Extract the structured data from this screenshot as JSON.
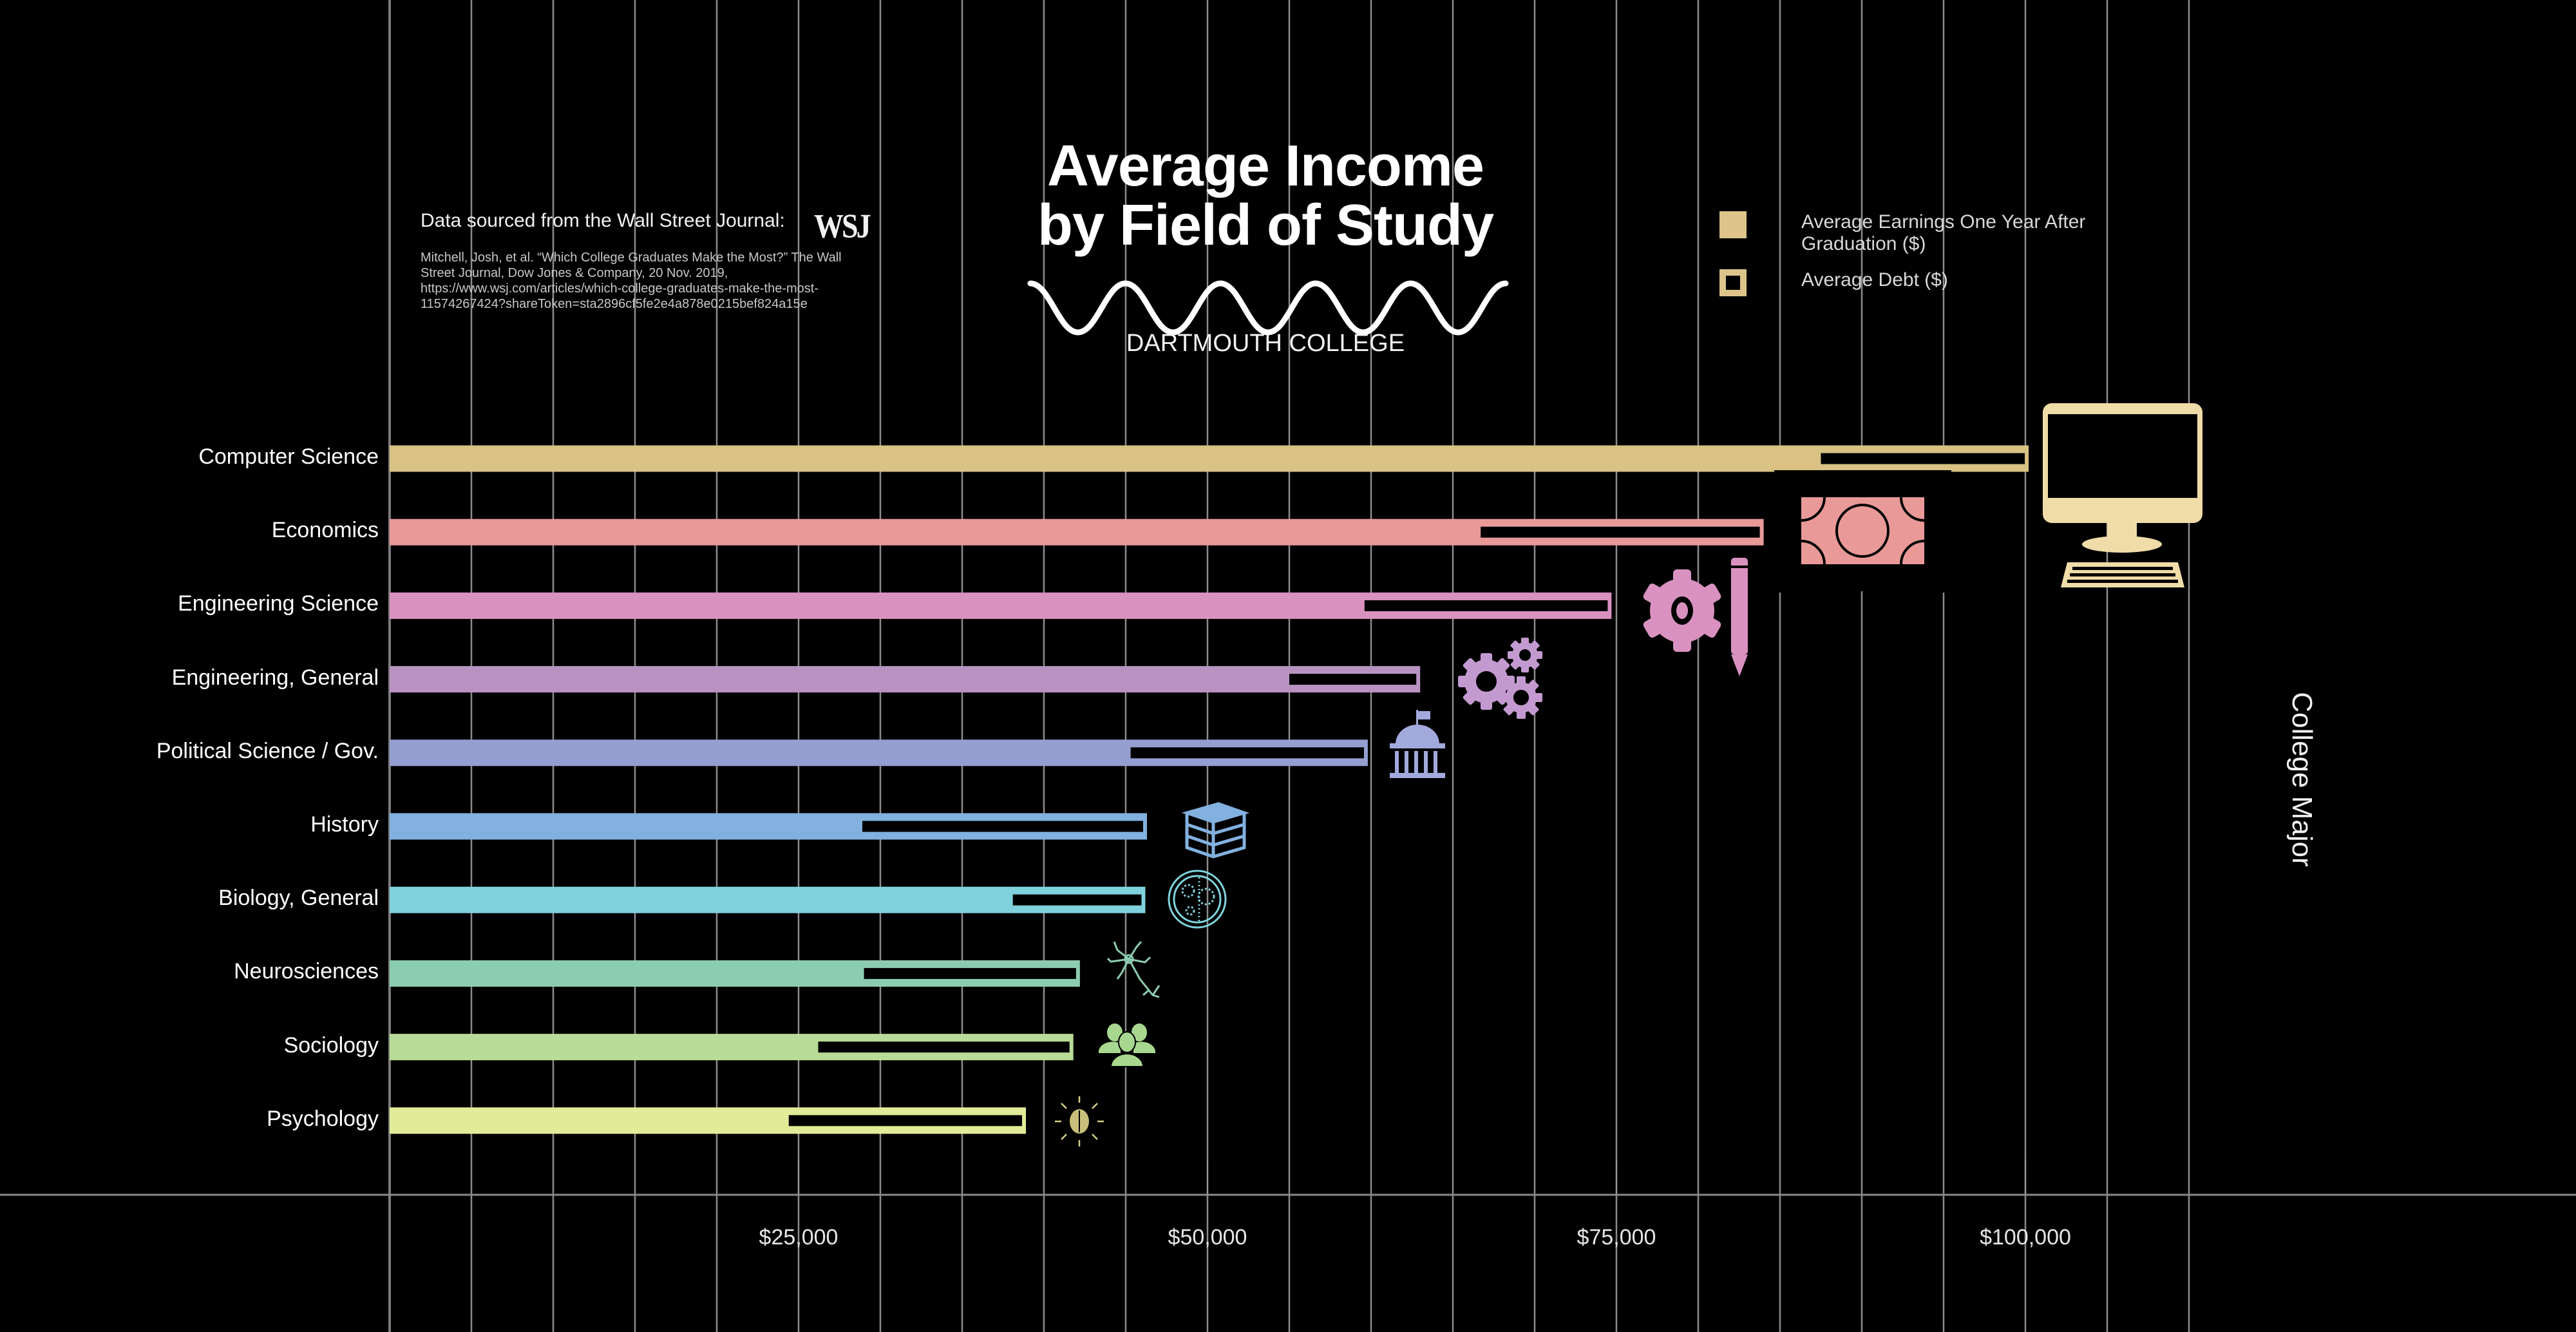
{
  "header": {
    "title_line1": "Average Income",
    "title_line2": "by Field of Study",
    "subtitle": "DARTMOUTH COLLEGE"
  },
  "source": {
    "heading": "Data sourced from the Wall Street Journal:",
    "logo_text": "WSJ",
    "citation": "Mitchell, Josh, et al. “Which College Graduates Make the Most?” The Wall Street Journal, Dow Jones & Company, 20 Nov. 2019, https://www.wsj.com/articles/which-college-graduates-make-the-most-11574267424?shareToken=sta2896cf5fe2e4a878e0215bef824a15e"
  },
  "legend": {
    "earnings_label": "Average Earnings One Year After Graduation ($)",
    "debt_label": "Average Debt ($)",
    "swatch_color": "#dcc48a"
  },
  "chart_data": {
    "type": "bar",
    "orientation": "horizontal",
    "title": "Average Income by Field of Study",
    "subtitle": "DARTMOUTH COLLEGE",
    "xlabel": "",
    "ylabel": "College Major",
    "xlim": [
      0,
      110000
    ],
    "x_ticks": [
      25000,
      50000,
      75000,
      100000
    ],
    "x_tick_labels": [
      "$25,000",
      "$50,000",
      "$75,000",
      "$100,000"
    ],
    "gridline_step": 5000,
    "grid": true,
    "legend_position": "top-right",
    "categories": [
      "Computer Science",
      "Economics",
      "Engineering Science",
      "Engineering, General",
      "Political Science / Gov.",
      "History",
      "Biology, General",
      "Neurosciences",
      "Sociology",
      "Psychology"
    ],
    "series": [
      {
        "name": "Average Earnings One Year After Graduation ($)",
        "values": [
          100200,
          84000,
          74700,
          63000,
          59800,
          46300,
          46200,
          42200,
          41800,
          38900
        ]
      },
      {
        "name": "Average Debt ($)",
        "values": [
          12700,
          17300,
          15100,
          8000,
          14500,
          17400,
          8100,
          13200,
          15600,
          14500
        ]
      }
    ],
    "colors": [
      "#d9c283",
      "#e99a98",
      "#d992c0",
      "#b893c2",
      "#959ed0",
      "#82b1e0",
      "#7fd2dc",
      "#8ccdb0",
      "#b8dc98",
      "#e2ec98"
    ],
    "icons": [
      "desktop-computer-icon",
      "money-bill-icon",
      "gear-and-pencil-icon",
      "gears-icon",
      "capitol-building-icon",
      "books-icon",
      "petri-dish-icon",
      "neuron-icon",
      "people-group-icon",
      "brain-icon"
    ]
  }
}
